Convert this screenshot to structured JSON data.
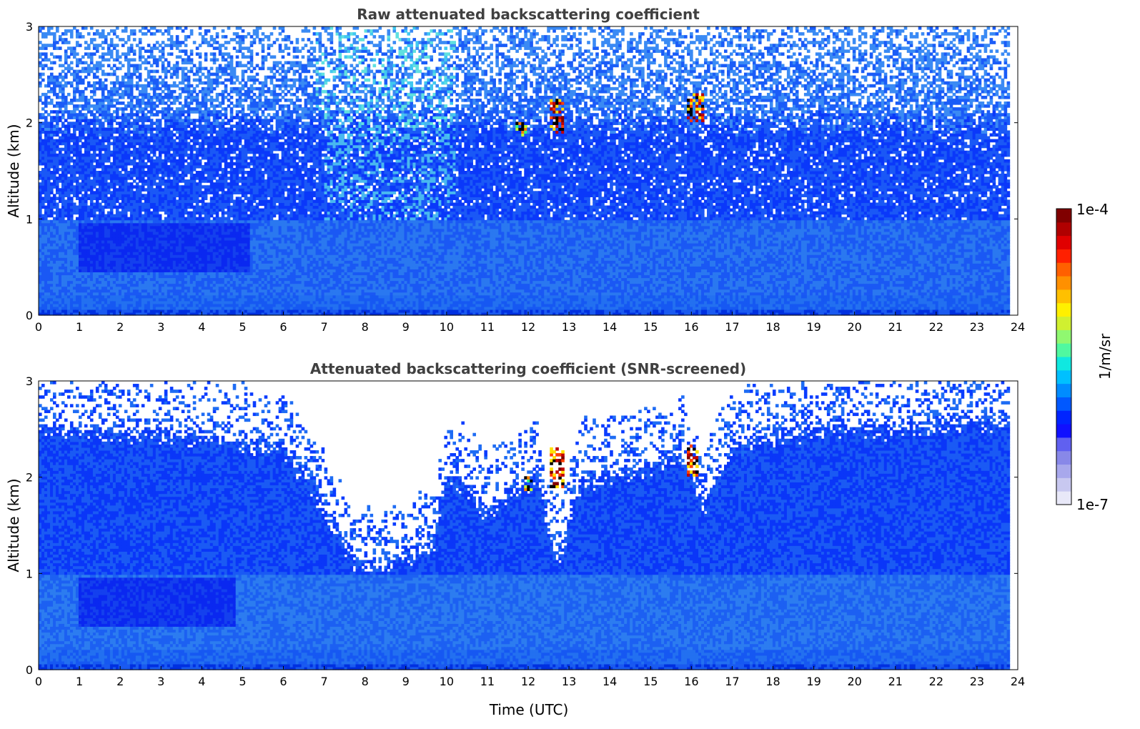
{
  "chart_data": [
    {
      "type": "heatmap",
      "title": "Raw attenuated backscattering coefficient",
      "xlabel": "",
      "ylabel": "Altitude (km)",
      "xlim": [
        0,
        24
      ],
      "ylim": [
        0,
        3
      ],
      "xticks": [
        "0",
        "1",
        "2",
        "3",
        "4",
        "5",
        "6",
        "7",
        "8",
        "9",
        "10",
        "11",
        "12",
        "13",
        "14",
        "15",
        "16",
        "17",
        "18",
        "19",
        "20",
        "21",
        "22",
        "23",
        "24"
      ],
      "yticks": [
        "0",
        "1",
        "2",
        "3"
      ],
      "data_x_end": 23.8,
      "screened": false,
      "features": {
        "boundary_layer_top_km": 2.0,
        "dark_layer_x": [
          1.0,
          5.2
        ],
        "dark_layer_y": [
          0.45,
          0.95
        ],
        "clouds": [
          {
            "x": [
              11.7,
              12.0
            ],
            "y": [
              1.85,
              2.0
            ],
            "level": "medium"
          },
          {
            "x": [
              12.5,
              12.9
            ],
            "y": [
              1.9,
              2.25
            ],
            "level": "high"
          },
          {
            "x": [
              15.9,
              16.3
            ],
            "y": [
              2.0,
              2.3
            ],
            "level": "high"
          }
        ]
      }
    },
    {
      "type": "heatmap",
      "title": "Attenuated backscattering coefficient (SNR-screened)",
      "xlabel": "Time (UTC)",
      "ylabel": "Altitude (km)",
      "xlim": [
        0,
        24
      ],
      "ylim": [
        0,
        3
      ],
      "xticks": [
        "0",
        "1",
        "2",
        "3",
        "4",
        "5",
        "6",
        "7",
        "8",
        "9",
        "10",
        "11",
        "12",
        "13",
        "14",
        "15",
        "16",
        "17",
        "18",
        "19",
        "20",
        "21",
        "22",
        "23",
        "24"
      ],
      "yticks": [
        "0",
        "1",
        "2",
        "3"
      ],
      "data_x_end": 23.8,
      "screened": true,
      "signal_top_km": [
        {
          "t": 0,
          "h": 2.5
        },
        {
          "t": 3,
          "h": 2.45
        },
        {
          "t": 6,
          "h": 2.3
        },
        {
          "t": 7,
          "h": 1.7
        },
        {
          "t": 7.7,
          "h": 1.1
        },
        {
          "t": 8.5,
          "h": 1.05
        },
        {
          "t": 9.2,
          "h": 1.2
        },
        {
          "t": 9.7,
          "h": 1.3
        },
        {
          "t": 10,
          "h": 2.0
        },
        {
          "t": 10.5,
          "h": 1.9
        },
        {
          "t": 11,
          "h": 1.6
        },
        {
          "t": 11.6,
          "h": 1.85
        },
        {
          "t": 12.2,
          "h": 2.0
        },
        {
          "t": 12.6,
          "h": 1.25
        },
        {
          "t": 12.8,
          "h": 1.2
        },
        {
          "t": 13.3,
          "h": 1.95
        },
        {
          "t": 15.8,
          "h": 2.2
        },
        {
          "t": 16.3,
          "h": 1.7
        },
        {
          "t": 17,
          "h": 2.3
        },
        {
          "t": 19,
          "h": 2.5
        },
        {
          "t": 21,
          "h": 2.5
        },
        {
          "t": 23.8,
          "h": 2.6
        }
      ],
      "features": {
        "dark_layer_x": [
          1.0,
          4.8
        ],
        "dark_layer_y": [
          0.45,
          0.95
        ],
        "clouds": [
          {
            "x": [
              11.9,
              12.1
            ],
            "y": [
              1.85,
              2.0
            ],
            "level": "medium"
          },
          {
            "x": [
              12.5,
              12.9
            ],
            "y": [
              1.9,
              2.3
            ],
            "level": "high"
          },
          {
            "x": [
              15.9,
              16.2
            ],
            "y": [
              2.0,
              2.35
            ],
            "level": "high"
          }
        ]
      }
    }
  ],
  "colorbar": {
    "label": "1/m/sr",
    "max_label": "1e-4",
    "min_label": "1e-7",
    "colors": [
      "#e8e8f8",
      "#c8c8f0",
      "#a8a8ec",
      "#8888e8",
      "#6060f0",
      "#1010ff",
      "#0024ff",
      "#0058ff",
      "#008cff",
      "#00c0ff",
      "#10e8e0",
      "#50f8a0",
      "#90f870",
      "#d0f030",
      "#fff000",
      "#ffc000",
      "#ff9000",
      "#ff6000",
      "#ff2000",
      "#e00000",
      "#b00000",
      "#800000"
    ]
  }
}
